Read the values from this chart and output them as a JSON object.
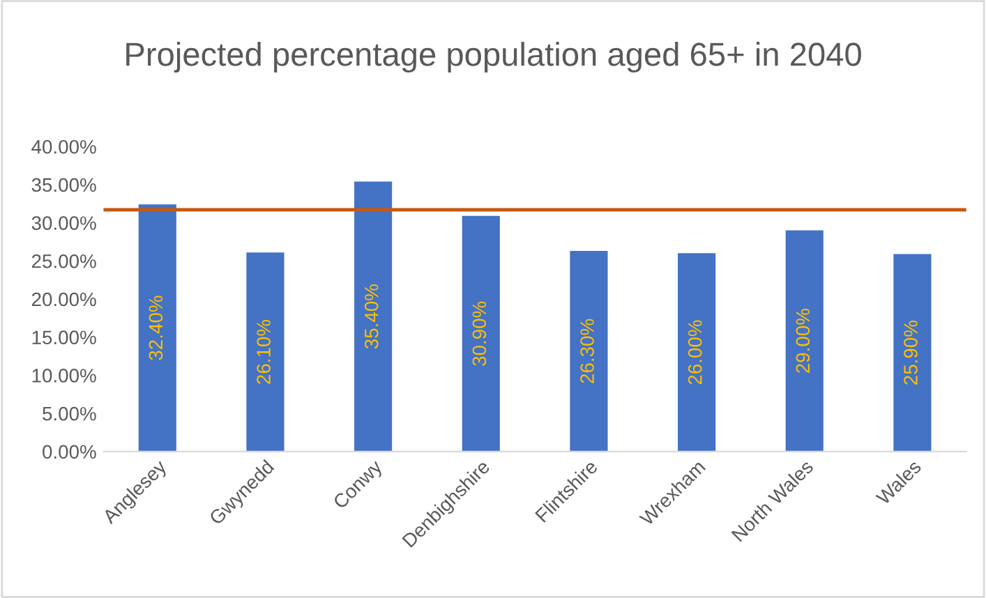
{
  "chart_data": {
    "type": "bar",
    "title": "Projected percentage population aged 65+ in 2040",
    "categories": [
      "Anglesey",
      "Gwynedd",
      "Conwy",
      "Denbighshire",
      "Flintshire",
      "Wrexham",
      "North Wales",
      "Wales"
    ],
    "values": [
      32.4,
      26.1,
      35.4,
      30.9,
      26.3,
      26.0,
      29.0,
      25.9
    ],
    "value_labels": [
      "32.40%",
      "26.10%",
      "35.40%",
      "30.90%",
      "26.30%",
      "26.00%",
      "29.00%",
      "25.90%"
    ],
    "color": "#4472c4",
    "ylim": [
      0,
      40
    ],
    "yticks": [
      {
        "value": 0,
        "label": "0.00%"
      },
      {
        "value": 5,
        "label": "5.00%"
      },
      {
        "value": 10,
        "label": "10.00%"
      },
      {
        "value": 15,
        "label": "15.00%"
      },
      {
        "value": 20,
        "label": "20.00%"
      },
      {
        "value": 25,
        "label": "25.00%"
      },
      {
        "value": 30,
        "label": "30.00%"
      },
      {
        "value": 35,
        "label": "35.00%"
      },
      {
        "value": 40,
        "label": "40.00%"
      }
    ],
    "ref_lines": [
      {
        "axis": "y",
        "value": 31.7,
        "color": "#c55a11"
      }
    ],
    "grid": false,
    "legend": false
  }
}
